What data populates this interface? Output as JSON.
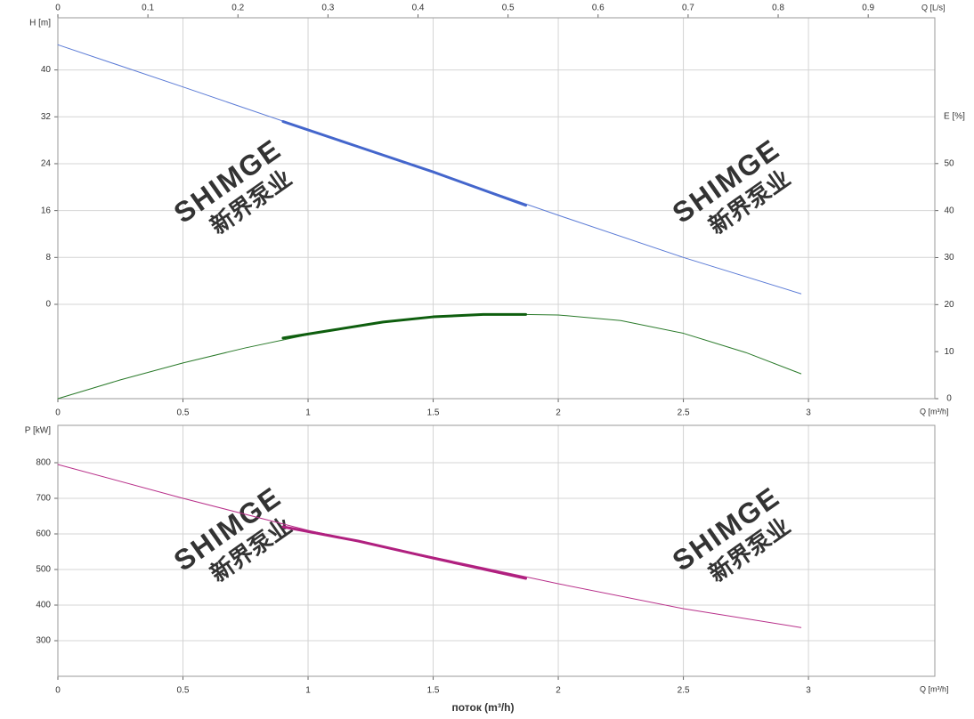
{
  "watermark": {
    "latin": "SHIMGE",
    "chinese": "新界泵业"
  },
  "chart_data": [
    {
      "type": "line",
      "xlabel": "Q [m³/h]",
      "xlim": [
        0,
        3.505
      ],
      "xticks": [
        0,
        0.5,
        1,
        1.5,
        2,
        2.5,
        3
      ],
      "x2label": "Q [L/s]",
      "x2lim": [
        0,
        0.974
      ],
      "x2ticks": [
        0,
        0.1,
        0.2,
        0.3,
        0.4,
        0.5,
        0.6,
        0.7,
        0.8,
        0.9
      ],
      "ylabel": "H [m]",
      "ylabel_color": "#3a5fc0",
      "ylim": [
        -16.1,
        48.9
      ],
      "yticks": [
        0,
        8,
        16,
        24,
        32,
        40
      ],
      "y2label": "E [%]",
      "y2label_color": "#1e6b1e",
      "y2lim": [
        0,
        81
      ],
      "y2ticks": [
        0,
        10,
        20,
        30,
        40,
        50
      ],
      "grid": true,
      "series": [
        {
          "color": "#5b7bd6",
          "line_width": 1,
          "x": [
            0,
            0.5,
            1,
            1.5,
            2,
            2.5,
            2.97
          ],
          "values": [
            44.3,
            37.1,
            29.8,
            22.6,
            15.2,
            8.0,
            1.8
          ]
        },
        {
          "color": "#4466cc",
          "line_width": 3,
          "x": [
            0.9,
            1.2,
            1.5,
            1.87
          ],
          "values": [
            31.2,
            26.9,
            22.6,
            16.9
          ]
        },
        {
          "color": "#2a7a2a",
          "line_width": 1,
          "axis": "y2",
          "x": [
            0,
            0.25,
            0.5,
            0.75,
            1,
            1.25,
            1.5,
            1.75,
            2,
            2.25,
            2.5,
            2.75,
            2.97
          ],
          "values": [
            0,
            4,
            7.6,
            10.8,
            13.6,
            15.9,
            17.4,
            18,
            17.8,
            16.6,
            13.9,
            9.8,
            5.3
          ]
        },
        {
          "color": "#0e5e0e",
          "line_width": 3,
          "axis": "y2",
          "x": [
            0.9,
            1.1,
            1.3,
            1.5,
            1.7,
            1.87
          ],
          "values": [
            12.9,
            14.6,
            16.3,
            17.4,
            17.9,
            17.9
          ]
        }
      ]
    },
    {
      "type": "line",
      "xlabel": "Q [m³/h]",
      "xlim": [
        0,
        3.505
      ],
      "xticks": [
        0,
        0.5,
        1,
        1.5,
        2,
        2.5,
        3
      ],
      "xtitle": "поток (m³/h)",
      "ylabel": "P [kW]",
      "ylabel_color": "#b0207f",
      "ylim": [
        200,
        905
      ],
      "yticks": [
        300,
        400,
        500,
        600,
        700,
        800
      ],
      "grid": true,
      "series": [
        {
          "color": "#b8308a",
          "line_width": 1,
          "x": [
            0,
            0.5,
            1,
            1.5,
            2,
            2.5,
            2.97
          ],
          "values": [
            795,
            700,
            610,
            535,
            460,
            390,
            337
          ]
        },
        {
          "color": "#b0207f",
          "line_width": 3,
          "x": [
            0.9,
            1.2,
            1.5,
            1.87
          ],
          "values": [
            620,
            580,
            532,
            475
          ]
        }
      ]
    }
  ]
}
